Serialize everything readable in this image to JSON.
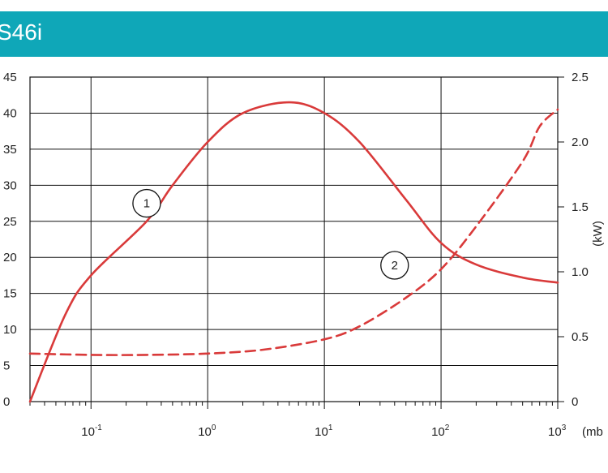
{
  "header": {
    "title": "S46i"
  },
  "chart_data": {
    "type": "line",
    "x_scale": "log",
    "x_unit_label": "(mb",
    "x_ticks": [
      {
        "base": "10",
        "exp": "-1",
        "value": 0.1
      },
      {
        "base": "10",
        "exp": "0",
        "value": 1
      },
      {
        "base": "10",
        "exp": "1",
        "value": 10
      },
      {
        "base": "10",
        "exp": "2",
        "value": 100
      },
      {
        "base": "10",
        "exp": "3",
        "value": 1000
      }
    ],
    "xlim": [
      0.03,
      1000
    ],
    "y_left": {
      "ticks": [
        "0",
        "5",
        "10",
        "15",
        "20",
        "25",
        "30",
        "35",
        "40",
        "45"
      ],
      "ylim": [
        0,
        45
      ]
    },
    "y_right": {
      "label": "(kW)",
      "ticks": [
        "0",
        "0.5",
        "1.0",
        "1.5",
        "2.0",
        "2.5"
      ],
      "ylim": [
        0,
        2.5
      ]
    },
    "grid": true,
    "series": [
      {
        "name": "1",
        "axis": "left",
        "color": "#d93a3a",
        "dash": "solid",
        "points": [
          [
            0.03,
            0
          ],
          [
            0.06,
            12
          ],
          [
            0.1,
            17.5
          ],
          [
            0.3,
            25
          ],
          [
            0.5,
            30
          ],
          [
            1,
            36
          ],
          [
            2,
            40
          ],
          [
            5,
            41.5
          ],
          [
            10,
            40
          ],
          [
            20,
            36
          ],
          [
            50,
            28
          ],
          [
            100,
            22
          ],
          [
            200,
            19
          ],
          [
            500,
            17.2
          ],
          [
            1000,
            16.5
          ]
        ]
      },
      {
        "name": "2",
        "axis": "right",
        "color": "#d93a3a",
        "dash": "dashed",
        "points": [
          [
            0.03,
            0.37
          ],
          [
            0.1,
            0.36
          ],
          [
            0.3,
            0.36
          ],
          [
            1,
            0.37
          ],
          [
            3,
            0.4
          ],
          [
            10,
            0.48
          ],
          [
            20,
            0.58
          ],
          [
            50,
            0.8
          ],
          [
            100,
            1.02
          ],
          [
            200,
            1.35
          ],
          [
            500,
            1.85
          ],
          [
            700,
            2.12
          ],
          [
            1000,
            2.25
          ]
        ]
      }
    ],
    "callouts": [
      {
        "text": "1",
        "x": 0.3,
        "y": 27.5,
        "axis": "left"
      },
      {
        "text": "2",
        "x": 40,
        "y": 1.05,
        "axis": "right"
      }
    ]
  }
}
